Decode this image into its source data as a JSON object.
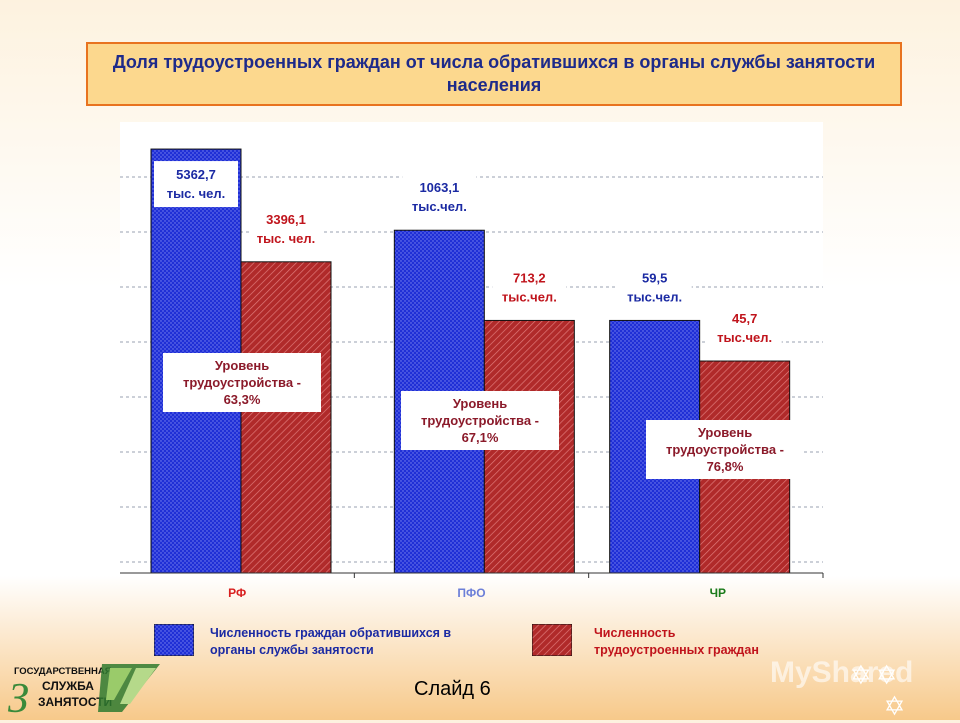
{
  "title": "Доля трудоустроенных граждан от числа обратившихся в органы службы занятости населения",
  "chart_data": {
    "type": "bar",
    "categories": [
      "РФ",
      "ПФО",
      "ЧР"
    ],
    "series": [
      {
        "name": "Численность граждан обратившихся в органы службы занятости",
        "color": "#1f2fd6",
        "labels": [
          [
            "5362,7",
            "тыс. чел."
          ],
          [
            "1063,1",
            "тыс.чел."
          ],
          [
            "59,5",
            "тыс.чел."
          ]
        ]
      },
      {
        "name": "Численность трудоустроенных граждан",
        "color": "#b02a2a",
        "labels": [
          [
            "3396,1",
            "тыс. чел."
          ],
          [
            "713,2",
            "тыс.чел."
          ],
          [
            "45,7",
            "тыс.чел."
          ]
        ]
      }
    ],
    "bar_heights_fraction": [
      [
        0.94,
        0.69
      ],
      [
        0.76,
        0.56
      ],
      [
        0.56,
        0.47
      ]
    ],
    "levels": [
      [
        "Уровень",
        "трудоустройства -",
        "63,3%"
      ],
      [
        "Уровень",
        "трудоустройства -",
        "67,1%"
      ],
      [
        "Уровень",
        "трудоустройства -",
        "76,8%"
      ]
    ],
    "category_colors": [
      "#d81f1f",
      "#6c7fd8",
      "#1a7a1a"
    ],
    "grid": true
  },
  "legend": [
    {
      "label_lines": [
        "Численность граждан обратившихся в",
        "органы службы занятости"
      ]
    },
    {
      "label_lines": [
        "Численность",
        "трудоустроенных граждан"
      ]
    }
  ],
  "footer": {
    "slide_label": "Слайд 6",
    "logo_lines": [
      "ГОСУДАРСТВЕННАЯ",
      "СЛУЖБА",
      "ЗАНЯТОСТИ"
    ],
    "logo_letter": "З",
    "watermark": "MyShared"
  }
}
